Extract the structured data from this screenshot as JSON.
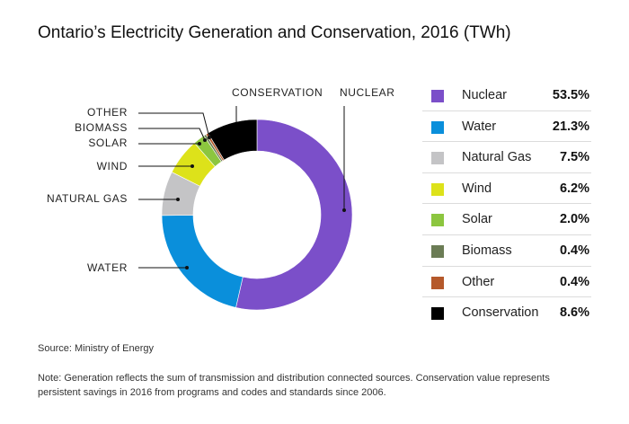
{
  "title": "Ontario’s Electricity Generation and Conservation, 2016 (TWh)",
  "source": "Source: Ministry of Energy",
  "note": "Note: Generation reflects the sum of transmission and distribution connected sources. Conservation value represents persistent savings in 2016 from programs and codes and standards since 2006.",
  "chart_data": {
    "type": "pie",
    "title": "Ontario’s Electricity Generation and Conservation, 2016 (TWh)",
    "slices": [
      {
        "name": "Nuclear",
        "chart_label": "NUCLEAR",
        "value": 53.5,
        "value_label": "53.5%",
        "color": "#7b4fc9"
      },
      {
        "name": "Water",
        "chart_label": "WATER",
        "value": 21.3,
        "value_label": "21.3%",
        "color": "#0a8fdb"
      },
      {
        "name": "Natural Gas",
        "chart_label": "NATURAL GAS",
        "value": 7.5,
        "value_label": "7.5%",
        "color": "#c4c4c6"
      },
      {
        "name": "Wind",
        "chart_label": "WIND",
        "value": 6.2,
        "value_label": "6.2%",
        "color": "#dde21a"
      },
      {
        "name": "Solar",
        "chart_label": "SOLAR",
        "value": 2.0,
        "value_label": "2.0%",
        "color": "#8cc63f"
      },
      {
        "name": "Biomass",
        "chart_label": "BIOMASS",
        "value": 0.4,
        "value_label": "0.4%",
        "color": "#6b7c55"
      },
      {
        "name": "Other",
        "chart_label": "OTHER",
        "value": 0.4,
        "value_label": "0.4%",
        "color": "#b5592b"
      },
      {
        "name": "Conservation",
        "chart_label": "CONSERVATION",
        "value": 8.6,
        "value_label": "8.6%",
        "color": "#000000"
      }
    ],
    "legend_position": "right"
  }
}
